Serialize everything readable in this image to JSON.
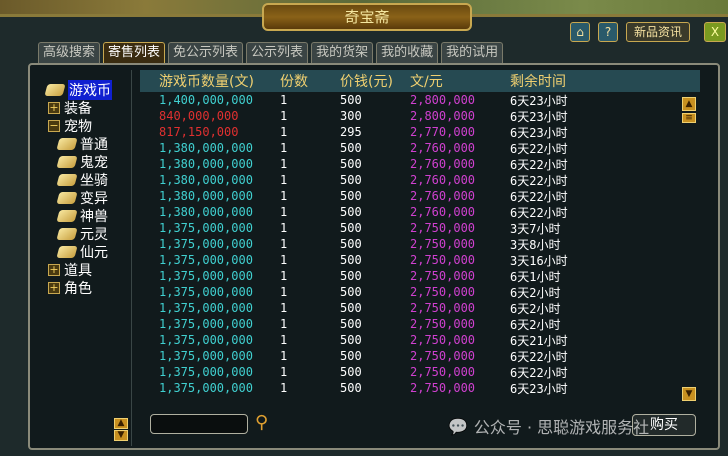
{
  "window": {
    "title": "奇宝斋",
    "news_label": "新品资讯",
    "home": "home-icon",
    "help": "?",
    "close": "X"
  },
  "tabs": [
    {
      "label": "高级搜索"
    },
    {
      "label": "寄售列表",
      "active": true
    },
    {
      "label": "免公示列表"
    },
    {
      "label": "公示列表"
    },
    {
      "label": "我的货架"
    },
    {
      "label": "我的收藏"
    },
    {
      "label": "我的试用"
    }
  ],
  "tree": {
    "top": [
      {
        "label": "游戏币",
        "selected": true
      },
      {
        "label": "装备",
        "expand": "+"
      },
      {
        "label": "宠物",
        "expand": "−"
      }
    ],
    "pets": [
      "普通",
      "鬼宠",
      "坐骑",
      "变异",
      "神兽",
      "元灵",
      "仙元"
    ],
    "bottom": [
      {
        "label": "道具",
        "expand": "+"
      },
      {
        "label": "角色",
        "expand": "+"
      }
    ]
  },
  "columns": [
    "游戏币数量(文)",
    "份数",
    "价钱(元)",
    "文/元",
    "剩余时间"
  ],
  "colors": {
    "cyan": "#40d0d0",
    "red": "#e03030",
    "magenta": "#d040d0",
    "header": "#f0d070"
  },
  "rows": [
    [
      "1,400,000,000",
      "1",
      "500",
      "2,800,000",
      "6天23小时",
      "cyan"
    ],
    [
      "840,000,000",
      "1",
      "300",
      "2,800,000",
      "6天23小时",
      "red"
    ],
    [
      "817,150,000",
      "1",
      "295",
      "2,770,000",
      "6天23小时",
      "red"
    ],
    [
      "1,380,000,000",
      "1",
      "500",
      "2,760,000",
      "6天22小时",
      "cyan"
    ],
    [
      "1,380,000,000",
      "1",
      "500",
      "2,760,000",
      "6天22小时",
      "cyan"
    ],
    [
      "1,380,000,000",
      "1",
      "500",
      "2,760,000",
      "6天22小时",
      "cyan"
    ],
    [
      "1,380,000,000",
      "1",
      "500",
      "2,760,000",
      "6天22小时",
      "cyan"
    ],
    [
      "1,380,000,000",
      "1",
      "500",
      "2,760,000",
      "6天22小时",
      "cyan"
    ],
    [
      "1,375,000,000",
      "1",
      "500",
      "2,750,000",
      "3天7小时",
      "cyan"
    ],
    [
      "1,375,000,000",
      "1",
      "500",
      "2,750,000",
      "3天8小时",
      "cyan"
    ],
    [
      "1,375,000,000",
      "1",
      "500",
      "2,750,000",
      "3天16小时",
      "cyan"
    ],
    [
      "1,375,000,000",
      "1",
      "500",
      "2,750,000",
      "6天1小时",
      "cyan"
    ],
    [
      "1,375,000,000",
      "1",
      "500",
      "2,750,000",
      "6天2小时",
      "cyan"
    ],
    [
      "1,375,000,000",
      "1",
      "500",
      "2,750,000",
      "6天2小时",
      "cyan"
    ],
    [
      "1,375,000,000",
      "1",
      "500",
      "2,750,000",
      "6天2小时",
      "cyan"
    ],
    [
      "1,375,000,000",
      "1",
      "500",
      "2,750,000",
      "6天21小时",
      "cyan"
    ],
    [
      "1,375,000,000",
      "1",
      "500",
      "2,750,000",
      "6天22小时",
      "cyan"
    ],
    [
      "1,375,000,000",
      "1",
      "500",
      "2,750,000",
      "6天22小时",
      "cyan"
    ],
    [
      "1,375,000,000",
      "1",
      "500",
      "2,750,000",
      "6天23小时",
      "cyan"
    ]
  ],
  "search": {
    "value": ""
  },
  "buy_label": "购买",
  "watermark": "公众号 · 思聪游戏服务社"
}
